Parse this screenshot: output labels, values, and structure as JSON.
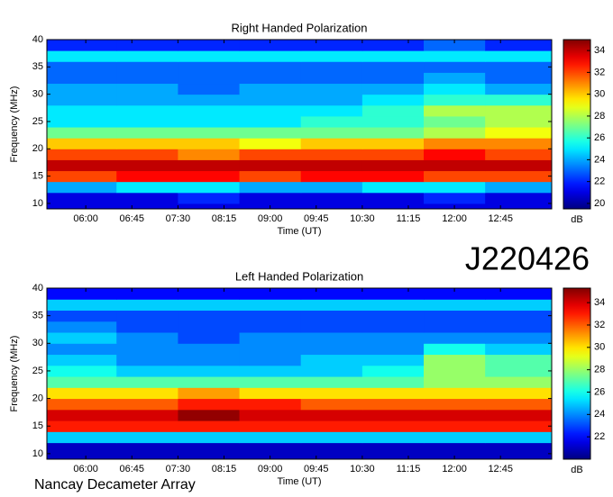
{
  "chart_data": [
    {
      "type": "heatmap",
      "title": "Right Handed Polarization",
      "x_label": "Time (UT)",
      "y_label": "Frequency (MHz)",
      "colorbar_label": "dB",
      "xlim": [
        "05:22",
        "13:35"
      ],
      "xticks": [
        "06:00",
        "06:45",
        "07:30",
        "08:15",
        "09:00",
        "09:45",
        "10:30",
        "11:15",
        "12:00",
        "12:45"
      ],
      "ylim": [
        9,
        40
      ],
      "yticks": [
        10,
        15,
        20,
        25,
        30,
        35,
        40
      ],
      "clim": [
        19.5,
        35
      ],
      "cticks": [
        20,
        22,
        24,
        26,
        28,
        30,
        32,
        34
      ],
      "colormap": "jet",
      "x_bins": [
        "05:22",
        "06:30",
        "07:30",
        "08:30",
        "09:30",
        "10:30",
        "11:30",
        "12:30",
        "13:35"
      ],
      "y_bins": [
        9,
        10,
        12,
        14,
        16,
        18,
        20,
        22,
        24,
        26,
        28,
        30,
        32,
        34,
        36,
        38,
        40
      ],
      "z": [
        [
          21,
          21,
          21,
          21,
          21,
          21,
          21,
          21
        ],
        [
          21,
          21,
          22,
          21,
          21,
          21,
          22,
          21
        ],
        [
          24,
          25,
          25,
          24,
          24,
          25,
          25,
          24
        ],
        [
          32,
          33,
          33,
          32,
          33,
          33,
          32,
          32
        ],
        [
          34,
          34,
          34,
          34,
          34,
          34,
          34,
          34
        ],
        [
          32,
          32,
          31,
          32,
          32,
          32,
          33,
          32
        ],
        [
          30,
          30,
          30,
          29,
          30,
          30,
          31,
          31
        ],
        [
          27,
          27,
          27,
          27,
          27,
          27,
          28,
          29
        ],
        [
          25,
          25,
          25,
          25,
          26,
          26,
          27,
          28
        ],
        [
          25,
          25,
          25,
          25,
          25,
          26,
          28,
          28
        ],
        [
          24,
          24,
          24,
          24,
          24,
          25,
          26,
          26
        ],
        [
          24,
          24,
          23,
          24,
          24,
          24,
          25,
          24
        ],
        [
          23,
          23,
          23,
          23,
          23,
          23,
          24,
          23
        ],
        [
          23,
          23,
          23,
          23,
          23,
          23,
          23,
          23
        ],
        [
          25,
          25,
          25,
          25,
          25,
          25,
          25,
          25
        ],
        [
          22,
          22,
          22,
          22,
          22,
          22,
          23,
          22
        ]
      ]
    },
    {
      "type": "heatmap",
      "title": "Left Handed Polarization",
      "x_label": "Time (UT)",
      "y_label": "Frequency (MHz)",
      "colorbar_label": "dB",
      "xlim": [
        "05:22",
        "13:35"
      ],
      "xticks": [
        "06:00",
        "06:45",
        "07:30",
        "08:15",
        "09:00",
        "09:45",
        "10:30",
        "11:15",
        "12:00",
        "12:45"
      ],
      "ylim": [
        9,
        40
      ],
      "yticks": [
        10,
        15,
        20,
        25,
        30,
        35,
        40
      ],
      "clim": [
        20,
        35.3
      ],
      "cticks": [
        22,
        24,
        26,
        28,
        30,
        32,
        34
      ],
      "colormap": "jet",
      "x_bins": [
        "05:22",
        "06:30",
        "07:30",
        "08:30",
        "09:30",
        "10:30",
        "11:30",
        "12:30",
        "13:35"
      ],
      "y_bins": [
        9,
        10,
        12,
        14,
        16,
        18,
        20,
        22,
        24,
        26,
        28,
        30,
        32,
        34,
        36,
        38,
        40
      ],
      "z": [
        [
          21,
          21,
          21,
          21,
          21,
          21,
          21,
          21
        ],
        [
          21,
          21,
          21,
          21,
          21,
          21,
          21,
          21
        ],
        [
          25,
          25,
          25,
          25,
          25,
          25,
          25,
          25
        ],
        [
          33,
          33,
          33,
          33,
          33,
          33,
          33,
          33
        ],
        [
          34,
          34,
          35,
          34,
          34,
          34,
          34,
          34
        ],
        [
          32,
          32,
          33,
          33,
          32,
          32,
          32,
          32
        ],
        [
          30,
          30,
          31,
          30,
          30,
          30,
          30,
          30
        ],
        [
          27,
          27,
          27,
          27,
          27,
          27,
          28,
          28
        ],
        [
          26,
          25,
          25,
          25,
          25,
          26,
          28,
          27
        ],
        [
          25,
          24,
          24,
          24,
          25,
          25,
          28,
          27
        ],
        [
          24,
          24,
          24,
          24,
          24,
          24,
          26,
          25
        ],
        [
          25,
          24,
          23,
          24,
          24,
          24,
          24,
          24
        ],
        [
          24,
          23,
          23,
          23,
          23,
          23,
          23,
          23
        ],
        [
          23,
          23,
          23,
          23,
          23,
          23,
          23,
          23
        ],
        [
          25,
          25,
          25,
          25,
          25,
          25,
          25,
          25
        ],
        [
          22,
          22,
          22,
          22,
          22,
          22,
          22,
          22
        ]
      ]
    }
  ],
  "annotations": {
    "id": "J220426",
    "observatory": "Nancay Decameter Array"
  }
}
